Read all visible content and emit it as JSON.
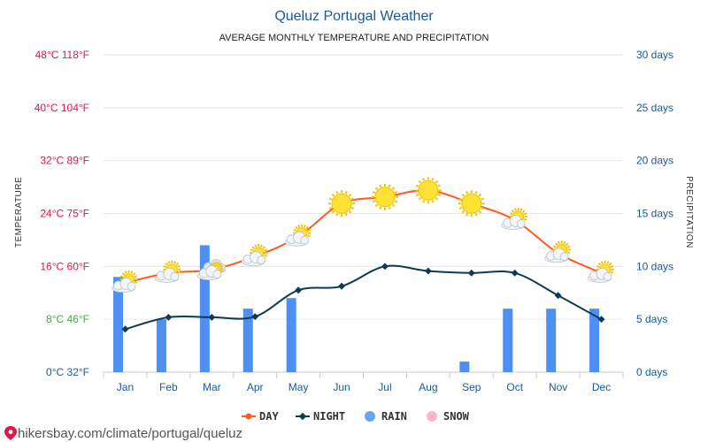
{
  "chart_data": {
    "type": "line",
    "title": "Queluz Portugal Weather",
    "subtitle": "AVERAGE MONTHLY TEMPERATURE AND PRECIPITATION",
    "categories": [
      "Jan",
      "Feb",
      "Mar",
      "Apr",
      "May",
      "Jun",
      "Jul",
      "Aug",
      "Sep",
      "Oct",
      "Nov",
      "Dec"
    ],
    "series": [
      {
        "name": "DAY",
        "unit": "°C",
        "color": "#ff5a1f",
        "values": [
          13.5,
          15.0,
          15.5,
          17.5,
          20.5,
          25.5,
          26.5,
          27.5,
          25.5,
          23.0,
          18.0,
          15.0
        ]
      },
      {
        "name": "NIGHT",
        "unit": "°C",
        "color": "#0d3b55",
        "values": [
          6.5,
          8.3,
          8.3,
          8.4,
          12.4,
          13.0,
          16.0,
          15.3,
          15.0,
          15.0,
          11.6,
          8.0
        ]
      },
      {
        "name": "RAIN",
        "unit": "days",
        "color": "#4d8ff2",
        "values": [
          9.0,
          5.0,
          12.0,
          6.0,
          7.0,
          0,
          0,
          0,
          1.0,
          6.0,
          6.0,
          6.0
        ]
      },
      {
        "name": "SNOW",
        "unit": "days",
        "color": "#ffb6c8",
        "values": [
          0,
          0,
          0,
          0,
          0,
          0,
          0,
          0,
          0,
          0,
          0,
          0
        ]
      }
    ],
    "weather_icons": [
      "partly-cloudy",
      "partly-cloudy",
      "cloudy",
      "partly-cloudy",
      "partly-cloudy",
      "sun",
      "sun",
      "sun",
      "sun",
      "partly-cloudy",
      "partly-cloudy",
      "partly-cloudy"
    ],
    "y_left": {
      "label": "TEMPERATURE",
      "range": [
        0,
        48
      ],
      "ticks": [
        {
          "value": 0,
          "label": "0°C 32°F",
          "color": "#1a5a9a"
        },
        {
          "value": 8,
          "label": "8°C 46°F",
          "color": "#3bb03b"
        },
        {
          "value": 16,
          "label": "16°C 60°F",
          "color": "#e0174a"
        },
        {
          "value": 24,
          "label": "24°C 75°F",
          "color": "#e0174a"
        },
        {
          "value": 32,
          "label": "32°C 89°F",
          "color": "#e0174a"
        },
        {
          "value": 40,
          "label": "40°C 104°F",
          "color": "#e0174a"
        },
        {
          "value": 48,
          "label": "48°C 118°F",
          "color": "#e0174a"
        }
      ]
    },
    "y_right": {
      "label": "PRECIPITATION",
      "range": [
        0,
        30
      ],
      "ticks": [
        {
          "value": 0,
          "label": "0 days"
        },
        {
          "value": 5,
          "label": "5 days"
        },
        {
          "value": 10,
          "label": "10 days"
        },
        {
          "value": 15,
          "label": "15 days"
        },
        {
          "value": 20,
          "label": "20 days"
        },
        {
          "value": 25,
          "label": "25 days"
        },
        {
          "value": 30,
          "label": "30 days"
        }
      ]
    },
    "legend": [
      "DAY",
      "NIGHT",
      "RAIN",
      "SNOW"
    ],
    "grid": true,
    "legend_position": "bottom-center"
  },
  "source": "hikersbay.com/climate/portugal/queluz"
}
